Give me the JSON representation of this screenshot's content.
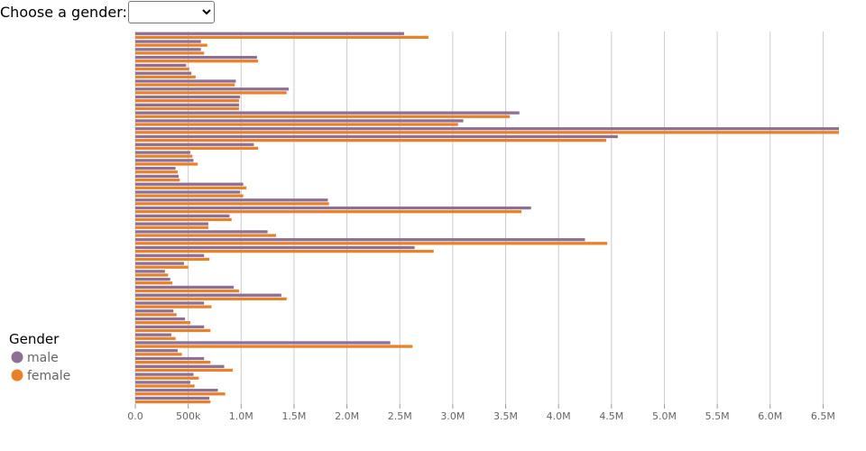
{
  "controls": {
    "gender_label": "Choose a gender:",
    "gender_select_value": ""
  },
  "colors": {
    "male": "#8e6f95",
    "female": "#e8822a",
    "grid": "#cccccc",
    "axis": "#999999"
  },
  "chart_data": {
    "type": "bar",
    "orientation": "horizontal",
    "title": "",
    "xlabel": "",
    "ylabel": "",
    "xlim": [
      0,
      6650000
    ],
    "x_tick_labels": [
      "0.0",
      "500k",
      "1.0M",
      "1.5M",
      "2.0M",
      "2.5M",
      "3.0M",
      "3.5M",
      "4.0M",
      "4.5M",
      "5.0M",
      "5.5M",
      "6.0M",
      "6.5M"
    ],
    "x_ticks": [
      0,
      500000,
      1000000,
      1500000,
      2000000,
      2500000,
      3000000,
      3500000,
      4000000,
      4500000,
      5000000,
      5500000,
      6000000,
      6500000
    ],
    "grid": "vertical",
    "legend": {
      "title": "Gender",
      "position": "bottom-left",
      "entries": [
        "male",
        "female"
      ]
    },
    "series": [
      {
        "name": "male",
        "values": [
          2540000,
          620000,
          620000,
          1150000,
          480000,
          530000,
          950000,
          1450000,
          990000,
          980000,
          3630000,
          3100000,
          6650000,
          4560000,
          1120000,
          520000,
          550000,
          380000,
          410000,
          1020000,
          990000,
          1820000,
          3740000,
          890000,
          690000,
          1250000,
          4250000,
          2640000,
          650000,
          460000,
          280000,
          330000,
          930000,
          1380000,
          650000,
          360000,
          470000,
          650000,
          340000,
          2410000,
          400000,
          650000,
          840000,
          550000,
          520000,
          780000,
          700000
        ]
      },
      {
        "name": "female",
        "values": [
          2770000,
          680000,
          650000,
          1160000,
          510000,
          570000,
          940000,
          1430000,
          980000,
          980000,
          3540000,
          3050000,
          6650000,
          4450000,
          1160000,
          540000,
          590000,
          400000,
          420000,
          1050000,
          1020000,
          1830000,
          3650000,
          910000,
          690000,
          1330000,
          4460000,
          2820000,
          700000,
          500000,
          310000,
          350000,
          980000,
          1430000,
          720000,
          390000,
          520000,
          710000,
          380000,
          2620000,
          440000,
          710000,
          920000,
          600000,
          560000,
          850000,
          710000
        ]
      }
    ]
  }
}
